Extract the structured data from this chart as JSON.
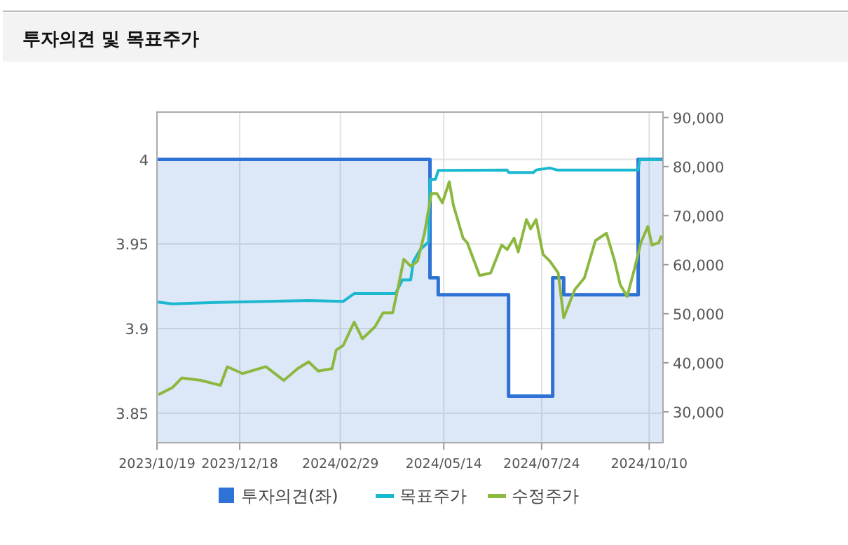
{
  "chart_data": {
    "type": "line",
    "title": "투자의견 및 목표주가",
    "xlim": [
      "2023-10-19",
      "2024-10-20"
    ],
    "xticks": [
      {
        "value": "2023-10-19",
        "label": "2023/10/19"
      },
      {
        "value": "2023-12-18",
        "label": "2023/12/18"
      },
      {
        "value": "2024-02-29",
        "label": "2024/02/29"
      },
      {
        "value": "2024-05-14",
        "label": "2024/05/14"
      },
      {
        "value": "2024-07-24",
        "label": "2024/07/24"
      },
      {
        "value": "2024-10-10",
        "label": "2024/10/10"
      }
    ],
    "ylim": [
      3.8325,
      4.028
    ],
    "yticks": [
      3.85,
      3.9,
      3.95,
      4
    ],
    "y2lim": [
      23700,
      91100
    ],
    "y2ticks": [
      {
        "value": 30000,
        "label": "30,000"
      },
      {
        "value": 40000,
        "label": "40,000"
      },
      {
        "value": 50000,
        "label": "50,000"
      },
      {
        "value": 60000,
        "label": "60,000"
      },
      {
        "value": 70000,
        "label": "70,000"
      },
      {
        "value": 80000,
        "label": "80,000"
      },
      {
        "value": 90000,
        "label": "90,000"
      }
    ],
    "grid": true,
    "legend": "bottom",
    "series": [
      {
        "name": "투자의견(좌)",
        "type": "area",
        "color": "#2f72d6",
        "x": [
          "2023-10-19",
          "2024-05-04",
          "2024-05-04",
          "2024-05-10",
          "2024-05-10",
          "2024-06-30",
          "2024-06-30",
          "2024-08-01",
          "2024-08-01",
          "2024-08-09",
          "2024-08-09",
          "2024-10-02",
          "2024-10-02",
          "2024-10-20"
        ],
        "values": [
          4,
          4,
          3.93,
          3.93,
          3.92,
          3.92,
          3.86,
          3.86,
          3.93,
          3.93,
          3.92,
          3.92,
          4,
          4
        ]
      },
      {
        "name": "목표주가",
        "type": "line",
        "axis": "y2",
        "color": "#1bb8d0",
        "x": [
          "2023-10-19",
          "2023-10-30",
          "2023-12-01",
          "2024-02-06",
          "2024-03-02",
          "2024-03-10",
          "2024-04-09",
          "2024-04-14",
          "2024-04-20",
          "2024-04-22",
          "2024-04-27",
          "2024-05-03",
          "2024-05-04",
          "2024-05-08",
          "2024-05-10",
          "2024-06-29",
          "2024-06-30",
          "2024-07-18",
          "2024-07-20",
          "2024-07-30",
          "2024-08-04",
          "2024-10-02",
          "2024-10-03",
          "2024-10-19"
        ],
        "values": [
          52400,
          52000,
          52300,
          52700,
          52500,
          54100,
          54100,
          56900,
          56900,
          60700,
          63100,
          64600,
          77400,
          77400,
          79200,
          79300,
          78800,
          78800,
          79300,
          79700,
          79300,
          79300,
          81400,
          81400
        ]
      },
      {
        "name": "수정주가",
        "type": "line",
        "axis": "y2",
        "color": "#8db83f",
        "x": [
          "2023-10-20",
          "2023-10-30",
          "2023-11-06",
          "2023-11-20",
          "2023-12-04",
          "2023-12-09",
          "2023-12-20",
          "2024-01-06",
          "2024-01-19",
          "2024-01-29",
          "2024-02-06",
          "2024-02-13",
          "2024-02-23",
          "2024-02-26",
          "2024-03-02",
          "2024-03-10",
          "2024-03-16",
          "2024-03-25",
          "2024-03-31",
          "2024-04-07",
          "2024-04-12",
          "2024-04-15",
          "2024-04-20",
          "2024-04-25",
          "2024-04-30",
          "2024-05-05",
          "2024-05-09",
          "2024-05-13",
          "2024-05-18",
          "2024-05-21",
          "2024-05-28",
          "2024-05-31",
          "2024-06-09",
          "2024-06-17",
          "2024-06-25",
          "2024-06-29",
          "2024-07-04",
          "2024-07-07",
          "2024-07-13",
          "2024-07-16",
          "2024-07-20",
          "2024-07-25",
          "2024-07-30",
          "2024-08-05",
          "2024-08-09",
          "2024-08-17",
          "2024-08-24",
          "2024-09-01",
          "2024-09-09",
          "2024-09-15",
          "2024-09-19",
          "2024-09-24",
          "2024-09-29",
          "2024-10-04",
          "2024-10-09",
          "2024-10-12",
          "2024-10-17",
          "2024-10-19"
        ],
        "values": [
          33500,
          34900,
          36900,
          36400,
          35400,
          39200,
          37800,
          39200,
          36400,
          38800,
          40200,
          38300,
          38800,
          42600,
          43500,
          48300,
          44900,
          47300,
          50200,
          50200,
          56900,
          61100,
          59700,
          60700,
          66400,
          74500,
          74500,
          72600,
          76900,
          72100,
          65400,
          64500,
          57800,
          58300,
          64000,
          63100,
          65400,
          62600,
          69200,
          67300,
          69200,
          62100,
          60700,
          58300,
          49200,
          54900,
          57300,
          64900,
          66400,
          60700,
          55900,
          53500,
          58800,
          64500,
          67800,
          64000,
          64500,
          65900
        ]
      }
    ]
  }
}
